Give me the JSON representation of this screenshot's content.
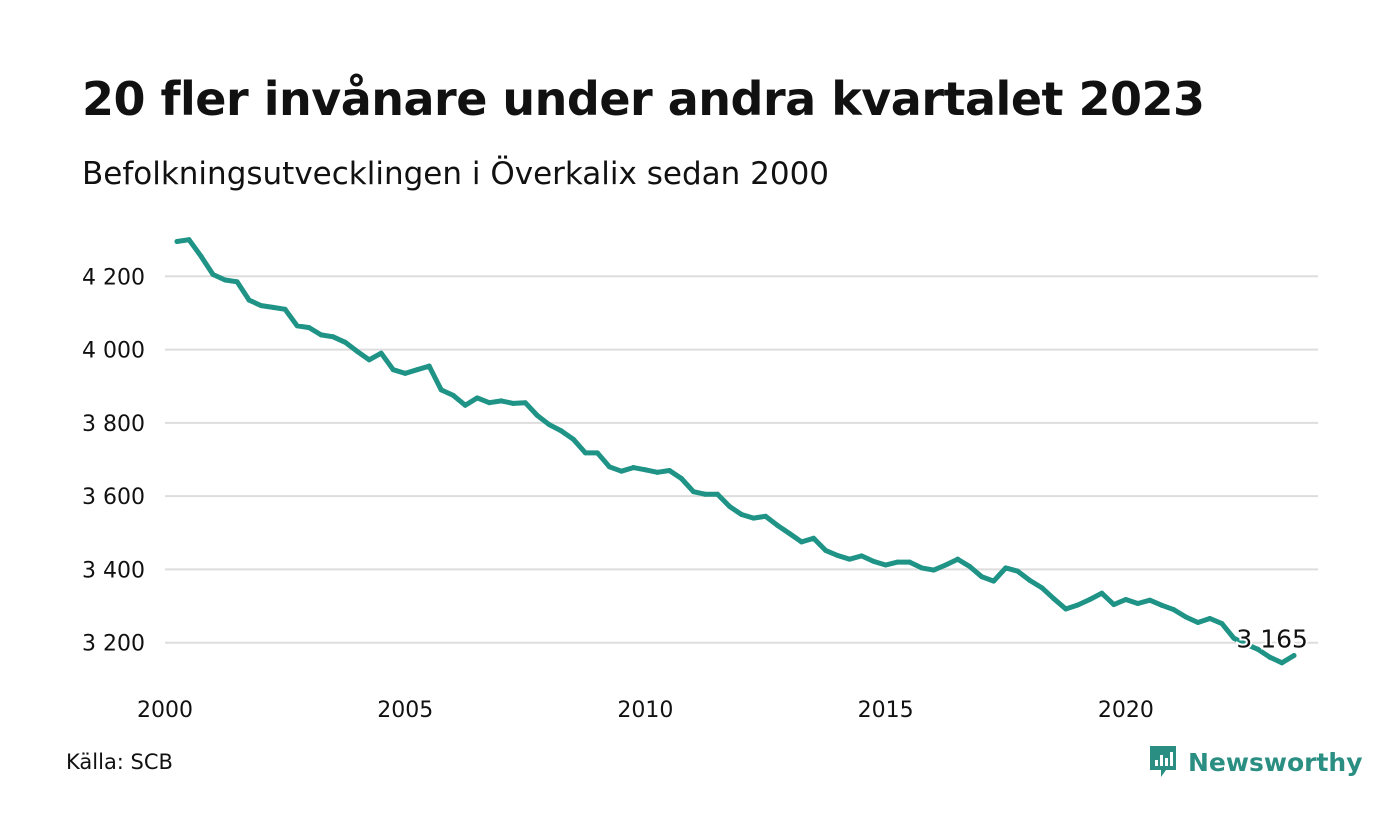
{
  "header": {
    "title": "20 fler invånare under andra kvartalet 2023",
    "subtitle": "Befolkningsutvecklingen i Överkalix sedan 2000"
  },
  "footer": {
    "source": "Källa: SCB",
    "brand": "Newsworthy",
    "brand_logo_icon": "newsworthy-logo-icon"
  },
  "colors": {
    "line": "#1f9486",
    "grid": "#dddddd",
    "brand": "#2a8f82"
  },
  "chart_data": {
    "type": "line",
    "title": "20 fler invånare under andra kvartalet 2023",
    "subtitle": "Befolkningsutvecklingen i Överkalix sedan 2000",
    "xlabel": "",
    "ylabel": "",
    "xlim": [
      2000,
      2024
    ],
    "ylim": [
      3120,
      4310
    ],
    "x_ticks": [
      2000,
      2005,
      2010,
      2015,
      2020
    ],
    "x_tick_labels": [
      "2000",
      "2005",
      "2010",
      "2015",
      "2020"
    ],
    "y_ticks": [
      3200,
      3400,
      3600,
      3800,
      4000,
      4200
    ],
    "y_tick_labels": [
      "3 200",
      "3 400",
      "3 600",
      "3 800",
      "4 000",
      "4 200"
    ],
    "grid": "horizontal",
    "end_label": "3 165",
    "series": [
      {
        "x": [
          2000.25,
          2000.5,
          2000.75,
          2001.0,
          2001.25,
          2001.5,
          2001.75,
          2002.0,
          2002.25,
          2002.5,
          2002.75,
          2003.0,
          2003.25,
          2003.5,
          2003.75,
          2004.0,
          2004.25,
          2004.5,
          2004.75,
          2005.0,
          2005.25,
          2005.5,
          2005.75,
          2006.0,
          2006.25,
          2006.5,
          2006.75,
          2007.0,
          2007.25,
          2007.5,
          2007.75,
          2008.0,
          2008.25,
          2008.5,
          2008.75,
          2009.0,
          2009.25,
          2009.5,
          2009.75,
          2010.0,
          2010.25,
          2010.5,
          2010.75,
          2011.0,
          2011.25,
          2011.5,
          2011.75,
          2012.0,
          2012.25,
          2012.5,
          2012.75,
          2013.0,
          2013.25,
          2013.5,
          2013.75,
          2014.0,
          2014.25,
          2014.5,
          2014.75,
          2015.0,
          2015.25,
          2015.5,
          2015.75,
          2016.0,
          2016.25,
          2016.5,
          2016.75,
          2017.0,
          2017.25,
          2017.5,
          2017.75,
          2018.0,
          2018.25,
          2018.5,
          2018.75,
          2019.0,
          2019.25,
          2019.5,
          2019.75,
          2020.0,
          2020.25,
          2020.5,
          2020.75,
          2021.0,
          2021.25,
          2021.5,
          2021.75,
          2022.0,
          2022.25,
          2022.5,
          2022.75,
          2023.0,
          2023.25,
          2023.5
        ],
        "values": [
          4295,
          4300,
          4255,
          4205,
          4190,
          4185,
          4135,
          4120,
          4115,
          4110,
          4065,
          4060,
          4040,
          4035,
          4020,
          3995,
          3972,
          3990,
          3945,
          3935,
          3945,
          3955,
          3890,
          3875,
          3848,
          3868,
          3855,
          3860,
          3853,
          3855,
          3820,
          3795,
          3778,
          3755,
          3718,
          3718,
          3680,
          3668,
          3678,
          3672,
          3665,
          3670,
          3648,
          3612,
          3605,
          3605,
          3572,
          3550,
          3540,
          3545,
          3520,
          3498,
          3475,
          3485,
          3452,
          3438,
          3428,
          3437,
          3422,
          3412,
          3420,
          3420,
          3404,
          3398,
          3412,
          3428,
          3408,
          3380,
          3368,
          3404,
          3395,
          3370,
          3350,
          3320,
          3292,
          3303,
          3318,
          3335,
          3304,
          3318,
          3307,
          3316,
          3302,
          3290,
          3270,
          3255,
          3266,
          3252,
          3212,
          3196,
          3182,
          3160,
          3145,
          3165
        ]
      }
    ]
  }
}
